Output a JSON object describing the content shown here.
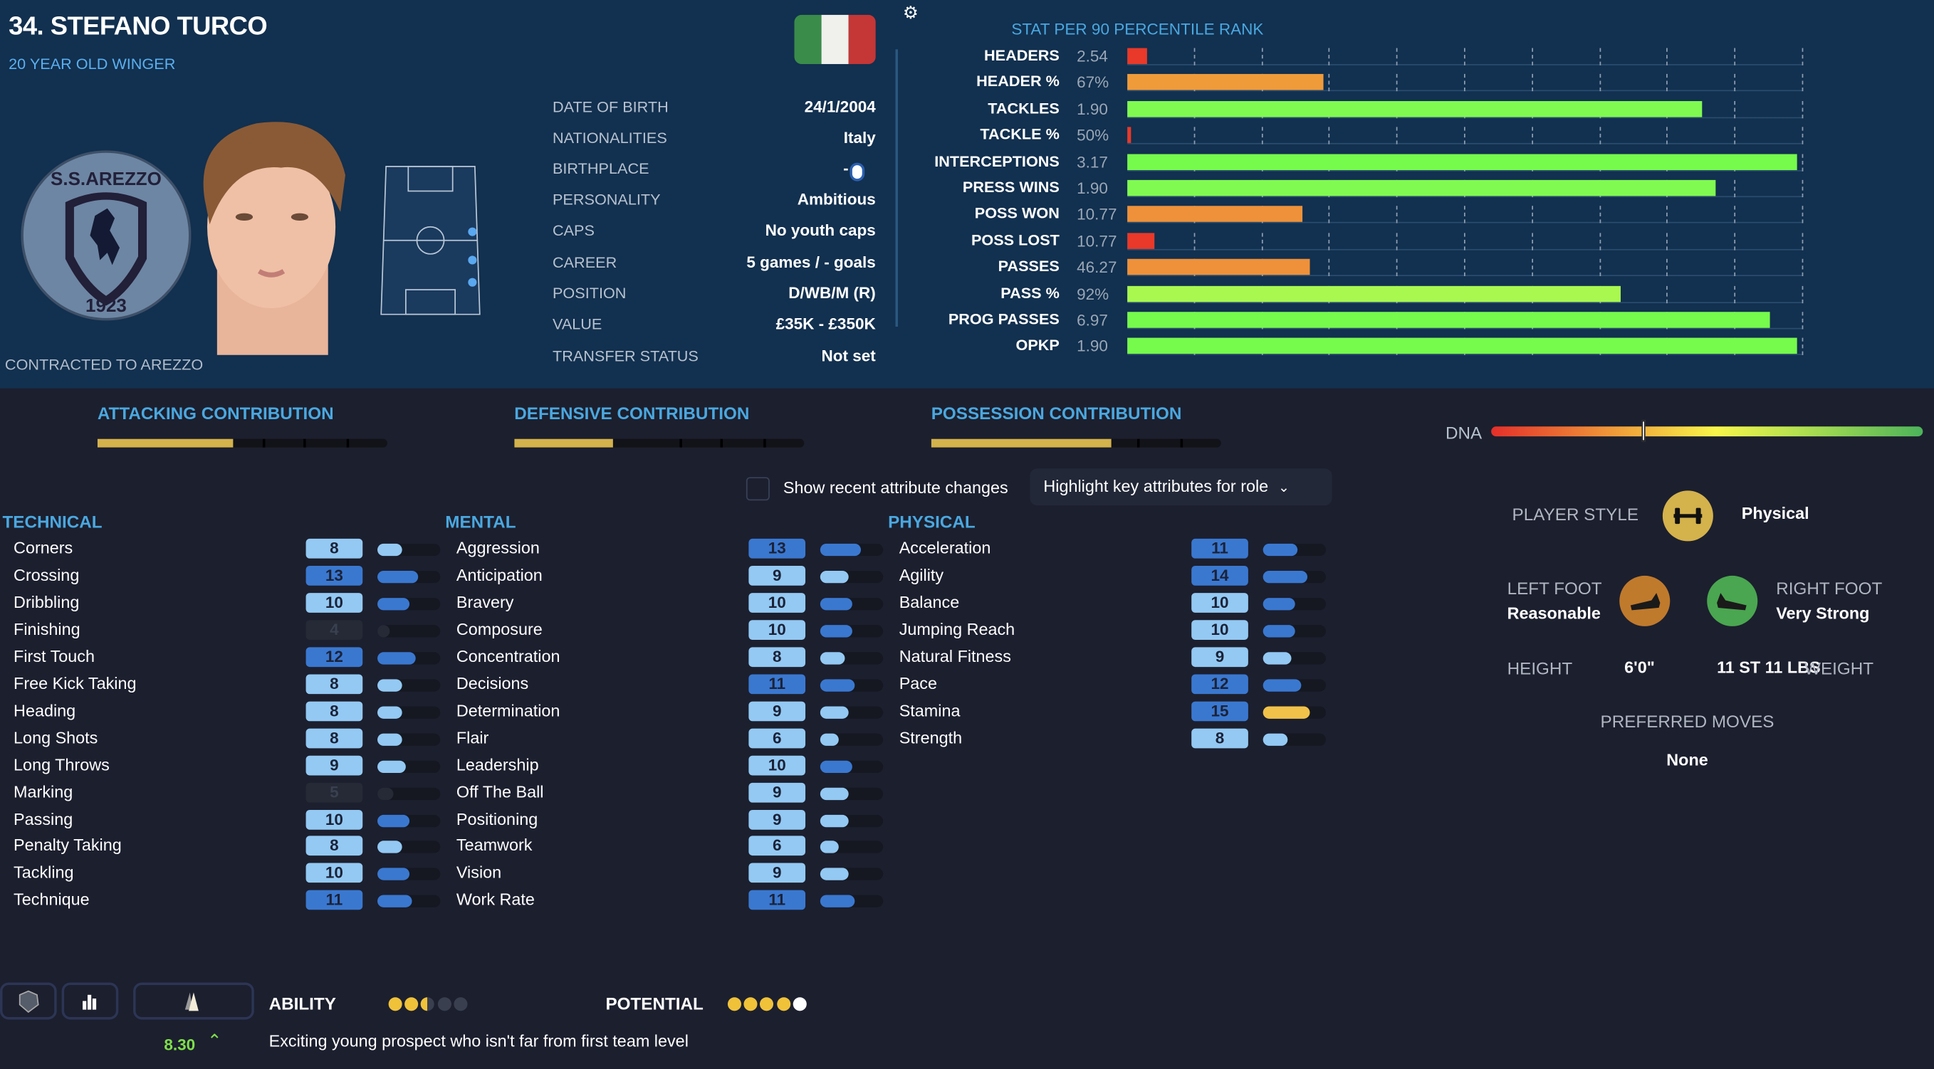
{
  "player": {
    "title": "34. STEFANO TURCO",
    "subtitle": "20 YEAR OLD WINGER",
    "contract": "CONTRACTED TO AREZZO",
    "club_badge_text": "S.S.AREZZO 1923",
    "flag": "italy-flag",
    "info": [
      {
        "label": "DATE OF BIRTH",
        "value": "24/1/2004"
      },
      {
        "label": "NATIONALITIES",
        "value": "Italy"
      },
      {
        "label": "BIRTHPLACE",
        "value": "-"
      },
      {
        "label": "PERSONALITY",
        "value": "Ambitious"
      },
      {
        "label": "CAPS",
        "value": "No youth caps"
      },
      {
        "label": "CAREER",
        "value": "5  games /    - goals"
      },
      {
        "label": "POSITION",
        "value": "D/WB/M (R)"
      },
      {
        "label": "VALUE",
        "value": "£35K - £350K"
      },
      {
        "label": "TRANSFER STATUS",
        "value": "Not set"
      }
    ]
  },
  "stats": {
    "header": "STAT   PER 90 PERCENTILE RANK",
    "rows": [
      {
        "label": "HEADERS",
        "value": "2.54",
        "percentile": 3,
        "color": "#e8392a"
      },
      {
        "label": "HEADER %",
        "value": "67%",
        "percentile": 29,
        "color": "#f09b3a"
      },
      {
        "label": "TACKLES",
        "value": "1.90",
        "percentile": 85,
        "color": "#80fa50"
      },
      {
        "label": "TACKLE %",
        "value": "50%",
        "percentile": 0.5,
        "color": "#e8392a"
      },
      {
        "label": "INTERCEPTIONS",
        "value": "3.17",
        "percentile": 99,
        "color": "#76fa4c"
      },
      {
        "label": "PRESS WINS",
        "value": "1.90",
        "percentile": 87,
        "color": "#80fa50"
      },
      {
        "label": "POSS WON",
        "value": "10.77",
        "percentile": 26,
        "color": "#ee913a"
      },
      {
        "label": "POSS LOST",
        "value": "10.77",
        "percentile": 4,
        "color": "#e8392a"
      },
      {
        "label": "PASSES",
        "value": "46.27",
        "percentile": 27,
        "color": "#ee913a"
      },
      {
        "label": "PASS %",
        "value": "92%",
        "percentile": 73,
        "color": "#a8f850"
      },
      {
        "label": "PROG PASSES",
        "value": "6.97",
        "percentile": 95,
        "color": "#76fa4c"
      },
      {
        "label": "OPKP",
        "value": "1.90",
        "percentile": 99,
        "color": "#76fa4c"
      }
    ]
  },
  "contributions": [
    {
      "label": "ATTACKING CONTRIBUTION",
      "level": 0.47
    },
    {
      "label": "DEFENSIVE CONTRIBUTION",
      "level": 0.34
    },
    {
      "label": "POSSESSION CONTRIBUTION",
      "level": 0.62
    }
  ],
  "dna": {
    "label": "DNA",
    "level": 0.35
  },
  "controls": {
    "show_changes_label": "Show recent attribute changes",
    "show_changes_checked": false,
    "highlight_label": "Highlight key attributes for role"
  },
  "attributes": {
    "technical": {
      "title": "TECHNICAL",
      "items": [
        {
          "name": "Corners",
          "value": 8
        },
        {
          "name": "Crossing",
          "value": 13
        },
        {
          "name": "Dribbling",
          "value": 10
        },
        {
          "name": "Finishing",
          "value": 4
        },
        {
          "name": "First Touch",
          "value": 12
        },
        {
          "name": "Free Kick Taking",
          "value": 8
        },
        {
          "name": "Heading",
          "value": 8
        },
        {
          "name": "Long Shots",
          "value": 8
        },
        {
          "name": "Long Throws",
          "value": 9
        },
        {
          "name": "Marking",
          "value": 5
        },
        {
          "name": "Passing",
          "value": 10
        },
        {
          "name": "Penalty Taking",
          "value": 8
        },
        {
          "name": "Tackling",
          "value": 10
        },
        {
          "name": "Technique",
          "value": 11
        }
      ]
    },
    "mental": {
      "title": "MENTAL",
      "items": [
        {
          "name": "Aggression",
          "value": 13
        },
        {
          "name": "Anticipation",
          "value": 9
        },
        {
          "name": "Bravery",
          "value": 10
        },
        {
          "name": "Composure",
          "value": 10
        },
        {
          "name": "Concentration",
          "value": 8
        },
        {
          "name": "Decisions",
          "value": 11
        },
        {
          "name": "Determination",
          "value": 9
        },
        {
          "name": "Flair",
          "value": 6
        },
        {
          "name": "Leadership",
          "value": 10
        },
        {
          "name": "Off The Ball",
          "value": 9
        },
        {
          "name": "Positioning",
          "value": 9
        },
        {
          "name": "Teamwork",
          "value": 6
        },
        {
          "name": "Vision",
          "value": 9
        },
        {
          "name": "Work Rate",
          "value": 11
        }
      ]
    },
    "physical": {
      "title": "PHYSICAL",
      "items": [
        {
          "name": "Acceleration",
          "value": 11
        },
        {
          "name": "Agility",
          "value": 14
        },
        {
          "name": "Balance",
          "value": 10
        },
        {
          "name": "Jumping Reach",
          "value": 10
        },
        {
          "name": "Natural Fitness",
          "value": 9
        },
        {
          "name": "Pace",
          "value": 12
        },
        {
          "name": "Stamina",
          "value": 15
        },
        {
          "name": "Strength",
          "value": 8
        }
      ]
    }
  },
  "profile": {
    "player_style_label": "PLAYER STYLE",
    "player_style": "Physical",
    "player_style_icon": "dumbbell-icon",
    "left_foot_label": "LEFT FOOT",
    "left_foot": "Reasonable",
    "right_foot_label": "RIGHT FOOT",
    "right_foot": "Very Strong",
    "height_label": "HEIGHT",
    "height": "6'0\"",
    "weight": "11 ST 11 LBS",
    "weight_label": "WEIGHT",
    "preferred_moves_label": "PREFERRED MOVES",
    "preferred_moves": "None",
    "colors": {
      "style": "#d4b24c",
      "left_foot": "#c07a2c",
      "right_foot": "#4aa650"
    }
  },
  "footer": {
    "ability_label": "ABILITY",
    "ability_stars": 2.5,
    "potential_label": "POTENTIAL",
    "potential_stars": 4,
    "potential_stars_max": 5,
    "rating": "8.30",
    "rating_trend": "up",
    "description": "Exciting young prospect who isn't far from first team level"
  }
}
